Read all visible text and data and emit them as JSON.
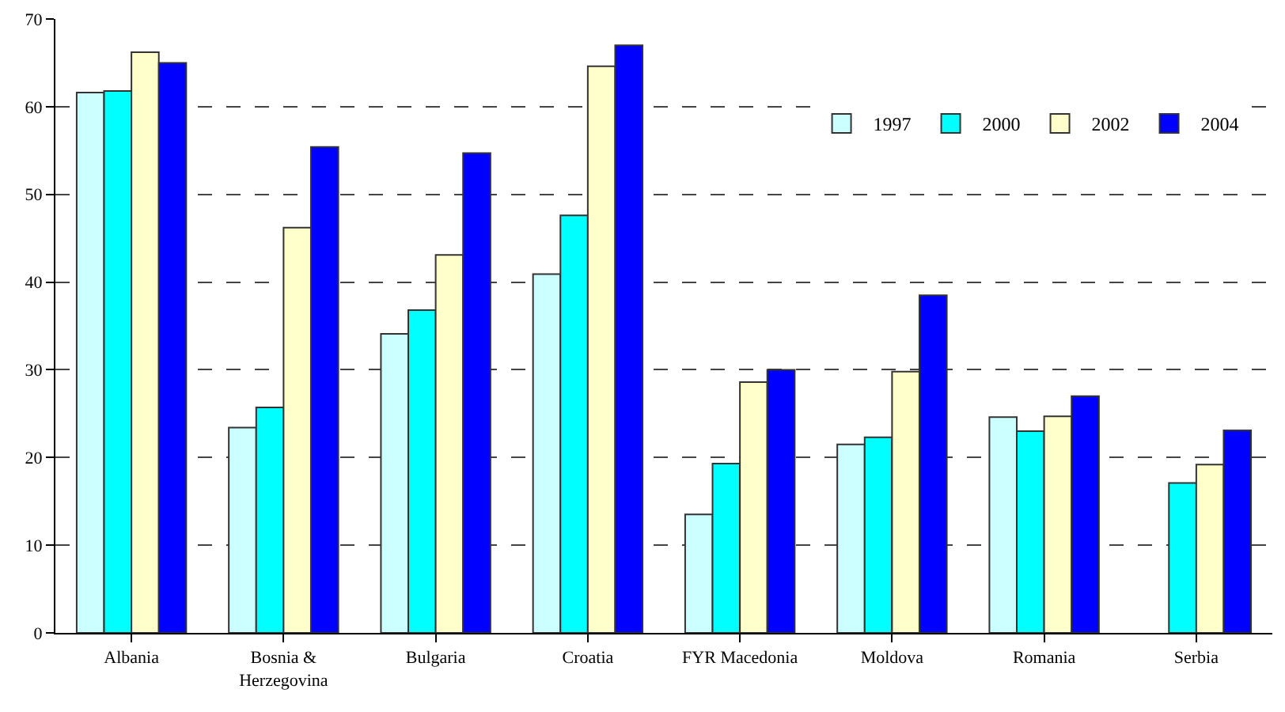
{
  "chart_data": {
    "type": "bar",
    "categories": [
      "Albania",
      "Bosnia & Herzegovina",
      "Bulgaria",
      "Croatia",
      "FYR Macedonia",
      "Moldova",
      "Romania",
      "Serbia"
    ],
    "series": [
      {
        "name": "1997",
        "color": "#ccffff",
        "values": [
          61.6,
          23.4,
          34.1,
          40.9,
          13.5,
          21.5,
          24.6,
          null
        ]
      },
      {
        "name": "2000",
        "color": "#00ffff",
        "values": [
          61.8,
          25.7,
          36.8,
          47.6,
          19.3,
          22.3,
          23.0,
          17.1
        ]
      },
      {
        "name": "2002",
        "color": "#ffffcc",
        "values": [
          66.2,
          46.2,
          43.1,
          64.6,
          28.6,
          29.8,
          24.7,
          19.2
        ]
      },
      {
        "name": "2004",
        "color": "#0000ff",
        "values": [
          65.0,
          55.4,
          54.7,
          67.0,
          30.0,
          38.5,
          27.0,
          23.1
        ]
      }
    ],
    "ylim": [
      0,
      70
    ],
    "yticks": [
      0,
      10,
      20,
      30,
      40,
      50,
      60,
      70
    ],
    "grid": "y",
    "legend": "top right"
  }
}
